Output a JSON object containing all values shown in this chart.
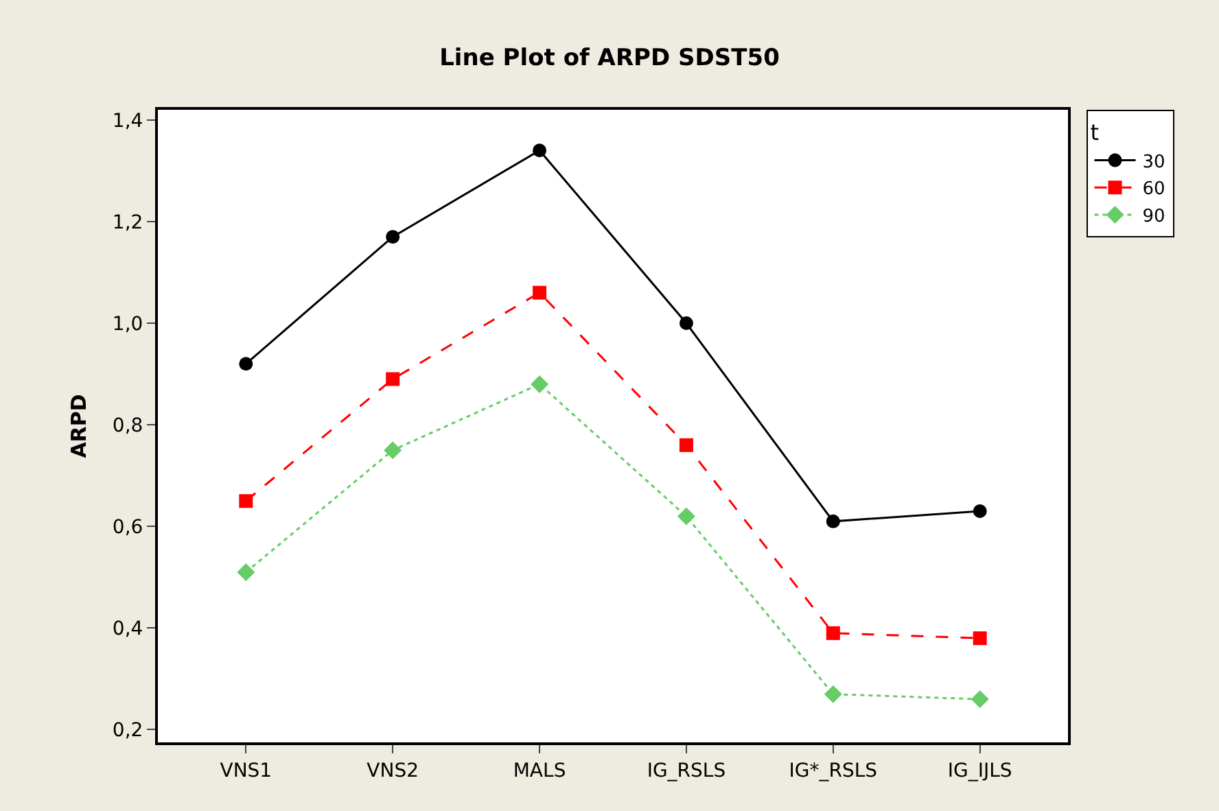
{
  "chart_data": {
    "type": "line",
    "title": "Line Plot of ARPD SDST50",
    "ylabel": "ARPD",
    "legend_title": "t",
    "legend": "top right",
    "categories": [
      "VNS1",
      "VNS2",
      "MALS",
      "IG_RSLS",
      "IG*_RSLS",
      "IG_IJLS"
    ],
    "ylim": [
      0.175,
      1.42
    ],
    "yticks": [
      {
        "value": 0.2,
        "label": "0,2"
      },
      {
        "value": 0.4,
        "label": "0,4"
      },
      {
        "value": 0.6,
        "label": "0,6"
      },
      {
        "value": 0.8,
        "label": "0,8"
      },
      {
        "value": 1.0,
        "label": "1,0"
      },
      {
        "value": 1.2,
        "label": "1,2"
      },
      {
        "value": 1.4,
        "label": "1,4"
      }
    ],
    "series": [
      {
        "name": "30",
        "color": "#000000",
        "marker": "circle",
        "line_style": "solid",
        "values": [
          0.92,
          1.17,
          1.34,
          1.0,
          0.61,
          0.63
        ]
      },
      {
        "name": "60",
        "color": "#ff0000",
        "marker": "square",
        "line_style": "dashed",
        "values": [
          0.65,
          0.89,
          1.06,
          0.76,
          0.39,
          0.38
        ]
      },
      {
        "name": "90",
        "color": "#66cc66",
        "marker": "diamond",
        "line_style": "dotted",
        "values": [
          0.51,
          0.75,
          0.88,
          0.62,
          0.27,
          0.26
        ]
      }
    ]
  }
}
